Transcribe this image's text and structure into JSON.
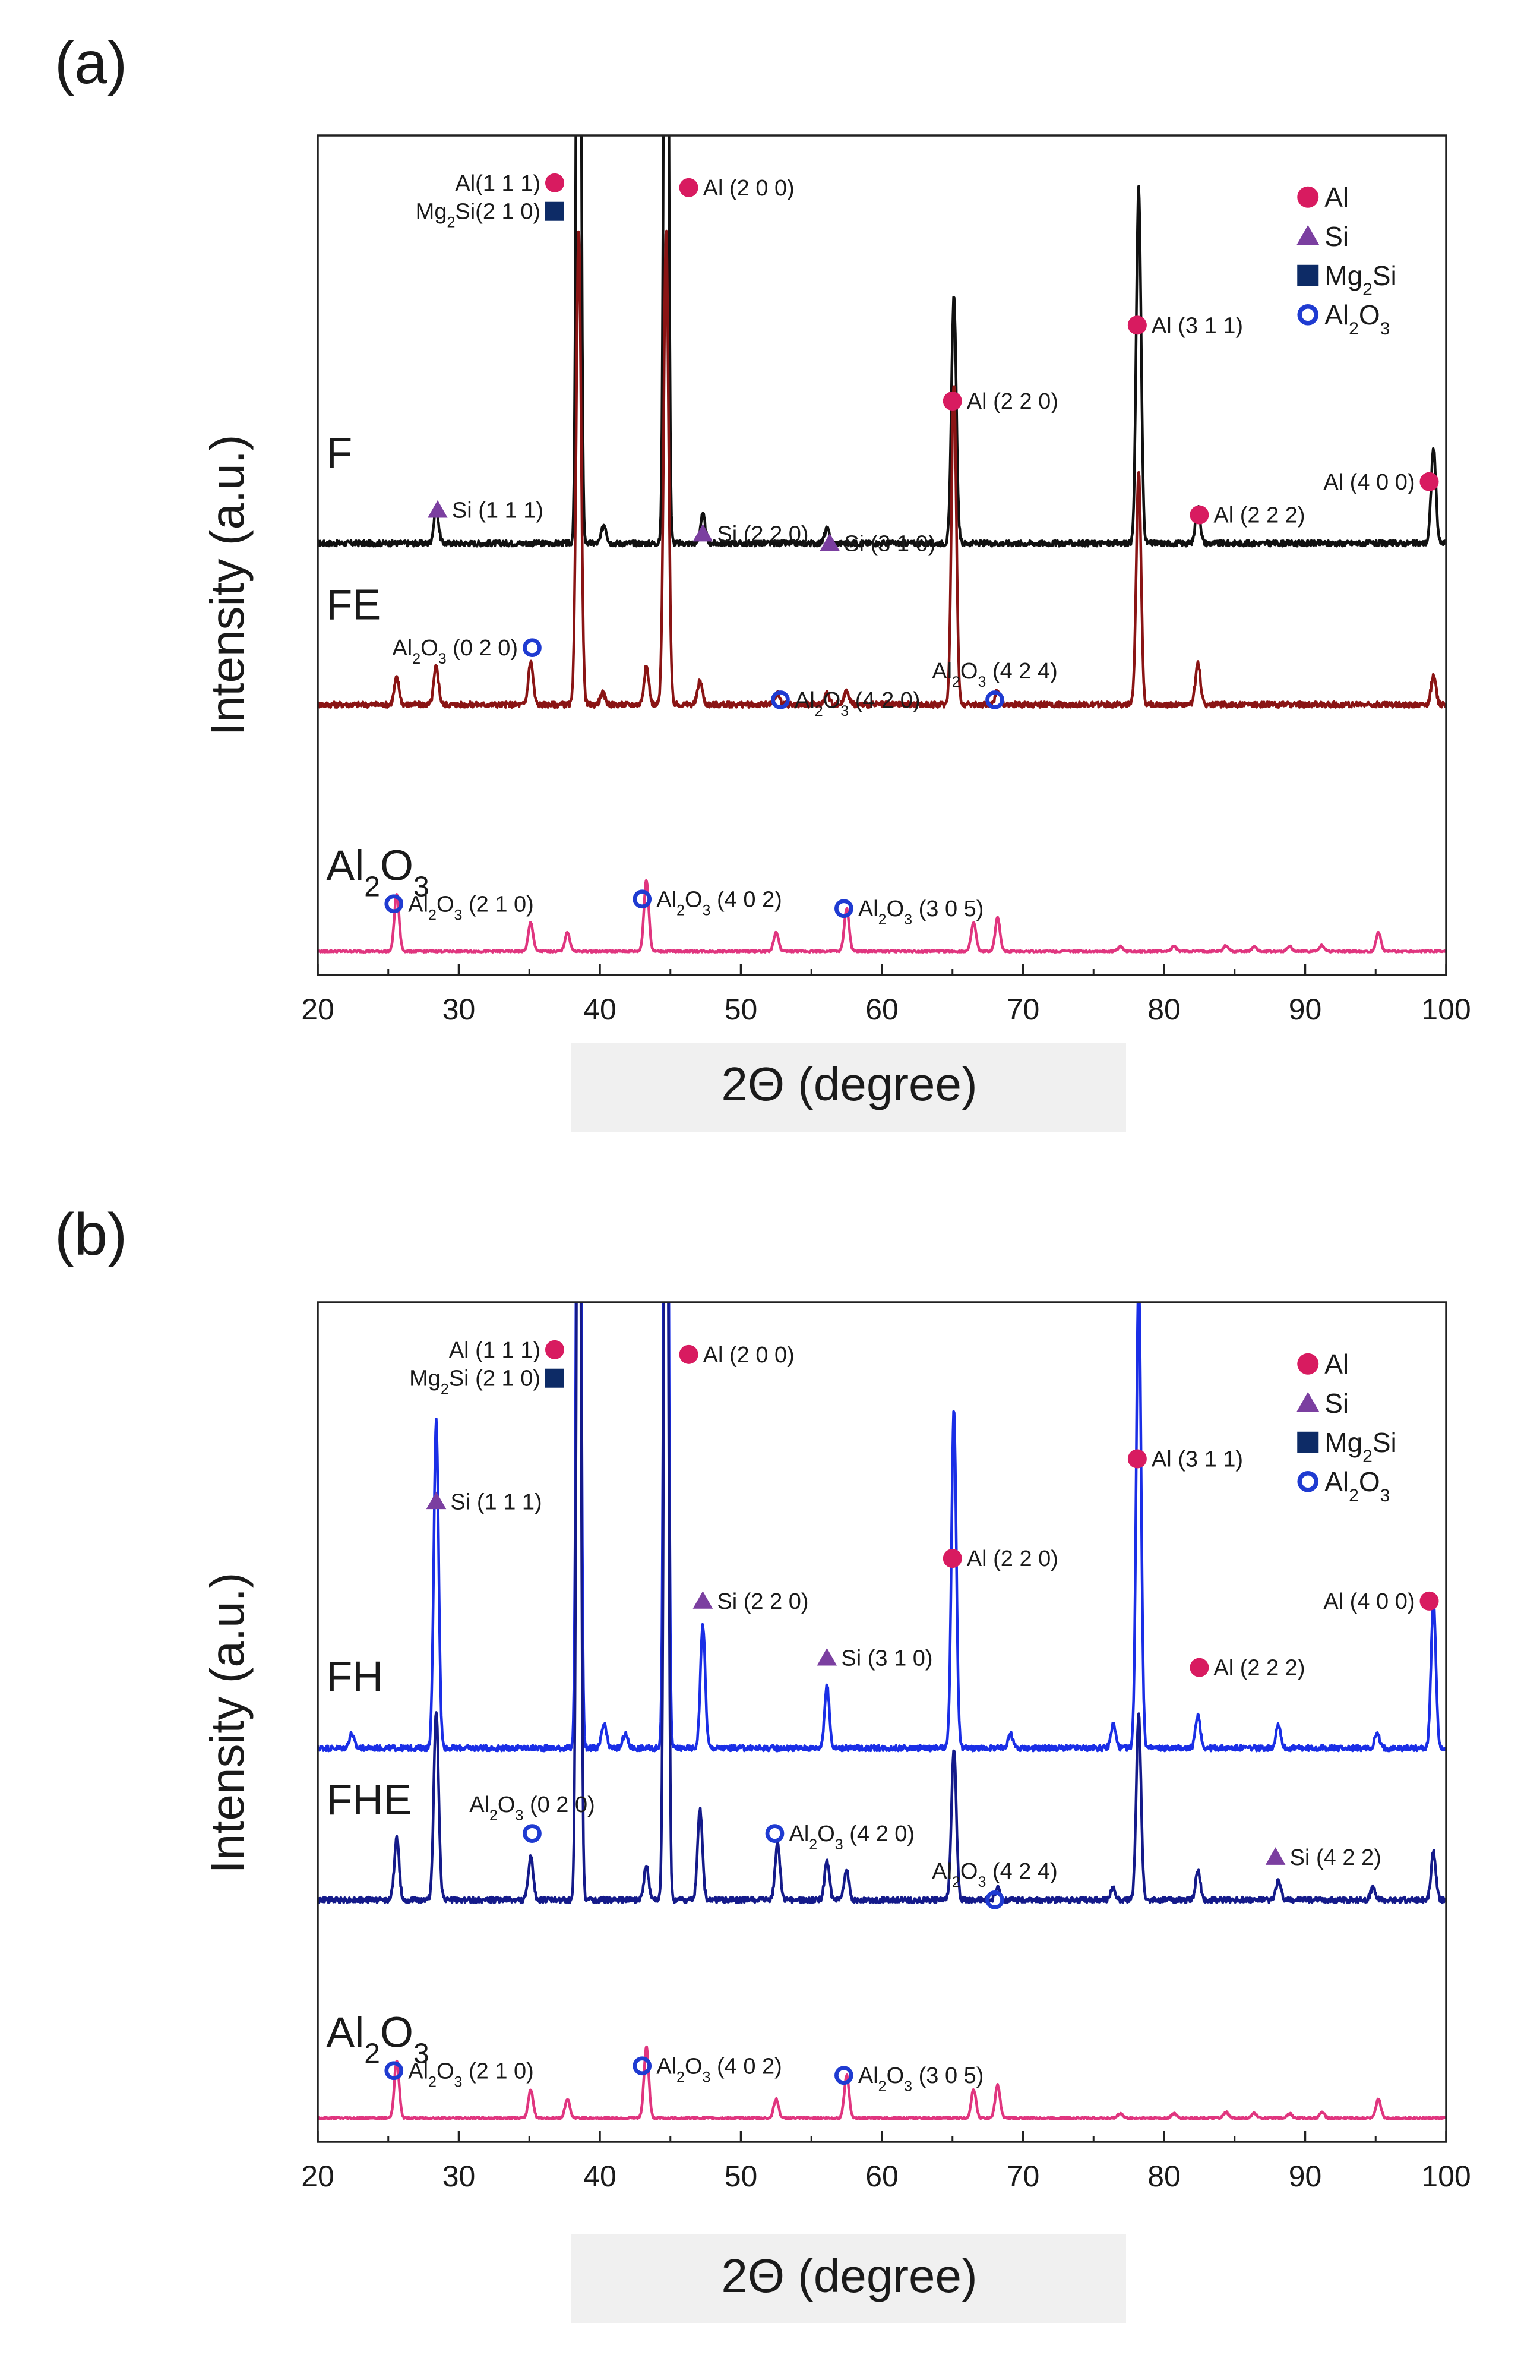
{
  "figure": {
    "xlabel_band_color": "#f0f0f0"
  },
  "chart_data": [
    {
      "type": "line",
      "panel_label": "(a)",
      "xlabel": "2Θ (degree)",
      "ylabel": "Intensity (a.u.)",
      "xlim": [
        20,
        100
      ],
      "xticks": [
        20,
        30,
        40,
        50,
        60,
        70,
        80,
        90,
        100
      ],
      "ylim": [
        -0.25,
        8.6
      ],
      "legend": {
        "position": "top-right",
        "items": [
          {
            "marker": "circle",
            "text": "Al"
          },
          {
            "marker": "triangle",
            "text": "Si"
          },
          {
            "marker": "square",
            "text": "Mg",
            "sub": "2",
            "after": "Si"
          },
          {
            "marker": "ring",
            "text": "Al",
            "sub": "2",
            "mid": "O",
            "sub2": "3"
          }
        ]
      },
      "series": [
        {
          "name": "F",
          "color": "#111111",
          "baseline": 4.3,
          "noise": 0.03,
          "peaks": [
            [
              28.4,
              0.35
            ],
            [
              38.5,
              12
            ],
            [
              40.3,
              0.2
            ],
            [
              44.7,
              12
            ],
            [
              47.3,
              0.3
            ],
            [
              56.1,
              0.15
            ],
            [
              65.1,
              2.6
            ],
            [
              78.2,
              3.75
            ],
            [
              82.4,
              0.38
            ],
            [
              99.1,
              1.0
            ]
          ]
        },
        {
          "name": "FE",
          "color": "#8a1414",
          "baseline": 2.6,
          "noise": 0.03,
          "peaks": [
            [
              25.6,
              0.28
            ],
            [
              28.4,
              0.4
            ],
            [
              35.1,
              0.45
            ],
            [
              38.5,
              5.0
            ],
            [
              40.2,
              0.12
            ],
            [
              43.3,
              0.4
            ],
            [
              44.7,
              5.0
            ],
            [
              47.1,
              0.25
            ],
            [
              52.6,
              0.12
            ],
            [
              56.1,
              0.12
            ],
            [
              57.5,
              0.15
            ],
            [
              65.1,
              3.4
            ],
            [
              68.2,
              0.15
            ],
            [
              78.2,
              2.45
            ],
            [
              82.4,
              0.45
            ],
            [
              99.1,
              0.3
            ]
          ]
        },
        {
          "name": "Al2O3",
          "color": "#e0357f",
          "baseline": 0.0,
          "noise": 0.01,
          "peaks": [
            [
              25.6,
              0.6
            ],
            [
              35.1,
              0.3
            ],
            [
              37.7,
              0.2
            ],
            [
              43.3,
              0.75
            ],
            [
              52.5,
              0.2
            ],
            [
              57.5,
              0.45
            ],
            [
              66.5,
              0.3
            ],
            [
              68.2,
              0.35
            ],
            [
              76.9,
              0.05
            ],
            [
              80.7,
              0.05
            ],
            [
              84.4,
              0.06
            ],
            [
              86.4,
              0.05
            ],
            [
              88.9,
              0.05
            ],
            [
              91.2,
              0.06
            ],
            [
              95.2,
              0.2
            ]
          ]
        }
      ],
      "series_labels": [
        {
          "text": "F",
          "at": [
            20.6,
            5.1
          ]
        },
        {
          "text": "FE",
          "at": [
            20.6,
            3.5
          ]
        },
        {
          "text": "Al",
          "sub": "2",
          "mid": "O",
          "sub2": "3",
          "at": [
            20.6,
            0.75
          ]
        }
      ],
      "annotations": [
        {
          "marker": "circle",
          "at": [
            36.8,
            8.1
          ],
          "side": "left",
          "text": "Al(1 1 1)"
        },
        {
          "marker": "square",
          "at": [
            36.8,
            7.8
          ],
          "side": "left",
          "text": "Mg",
          "sub": "2",
          "after": "Si(2 1 0)"
        },
        {
          "marker": "circle",
          "at": [
            46.3,
            8.05
          ],
          "side": "right",
          "text": "Al (2 0 0)"
        },
        {
          "marker": "circle",
          "at": [
            78.1,
            6.6
          ],
          "side": "right",
          "text": "Al (3 1 1)"
        },
        {
          "marker": "circle",
          "at": [
            65.0,
            5.8
          ],
          "side": "right",
          "text": "Al (2 2 0)"
        },
        {
          "marker": "circle",
          "at": [
            98.8,
            4.95
          ],
          "side": "left",
          "text": "Al (4 0 0)"
        },
        {
          "marker": "circle",
          "at": [
            82.5,
            4.6
          ],
          "side": "right",
          "text": "Al (2 2 2)"
        },
        {
          "marker": "triangle",
          "at": [
            28.5,
            4.65
          ],
          "side": "right",
          "text": "Si (1 1 1)"
        },
        {
          "marker": "triangle",
          "at": [
            47.3,
            4.4
          ],
          "side": "right",
          "text": "Si (2 2 0)"
        },
        {
          "marker": "triangle",
          "at": [
            56.3,
            4.3
          ],
          "side": "right",
          "text": "Si (3 1 0)"
        },
        {
          "marker": "ring",
          "at": [
            35.2,
            3.2
          ],
          "side": "left",
          "text": "Al",
          "sub": "2",
          "mid": "O",
          "sub2": "3",
          "after": "(0 2 0)"
        },
        {
          "marker": "ring",
          "at": [
            52.8,
            2.65
          ],
          "side": "right",
          "text": "Al",
          "sub": "2",
          "mid": "O",
          "sub2": "3",
          "after": "(4 2 0)"
        },
        {
          "marker": "ring",
          "at": [
            68.0,
            2.65
          ],
          "side": "above",
          "text": "Al",
          "sub": "2",
          "mid": "O",
          "sub2": "3",
          "after": "(4 2 4)"
        },
        {
          "marker": "ring",
          "at": [
            25.4,
            0.5
          ],
          "side": "right",
          "text": "Al",
          "sub": "2",
          "mid": "O",
          "sub2": "3",
          "after": "(2 1 0)"
        },
        {
          "marker": "ring",
          "at": [
            43.0,
            0.55
          ],
          "side": "right",
          "text": "Al",
          "sub": "2",
          "mid": "O",
          "sub2": "3",
          "after": "(4 0 2)"
        },
        {
          "marker": "ring",
          "at": [
            57.3,
            0.45
          ],
          "side": "right",
          "text": "Al",
          "sub": "2",
          "mid": "O",
          "sub2": "3",
          "after": "(3 0 5)"
        }
      ]
    },
    {
      "type": "line",
      "panel_label": "(b)",
      "xlabel": "2Θ (degree)",
      "ylabel": "Intensity (a.u.)",
      "xlim": [
        20,
        100
      ],
      "xticks": [
        20,
        30,
        40,
        50,
        60,
        70,
        80,
        90,
        100
      ],
      "ylim": [
        -0.25,
        8.6
      ],
      "legend": {
        "position": "top-right",
        "items": [
          {
            "marker": "circle",
            "text": "Al"
          },
          {
            "marker": "triangle",
            "text": "Si"
          },
          {
            "marker": "square",
            "text": "Mg",
            "sub": "2",
            "after": "Si"
          },
          {
            "marker": "ring",
            "text": "Al",
            "sub": "2",
            "mid": "O",
            "sub2": "3"
          }
        ]
      },
      "series": [
        {
          "name": "FH",
          "color": "#1a2ee6",
          "baseline": 3.9,
          "noise": 0.03,
          "peaks": [
            [
              22.4,
              0.15
            ],
            [
              28.4,
              3.45
            ],
            [
              38.5,
              12
            ],
            [
              40.3,
              0.25
            ],
            [
              41.8,
              0.15
            ],
            [
              44.7,
              12
            ],
            [
              47.3,
              1.3
            ],
            [
              56.1,
              0.65
            ],
            [
              65.1,
              3.55
            ],
            [
              69.1,
              0.15
            ],
            [
              76.4,
              0.25
            ],
            [
              78.2,
              5.0
            ],
            [
              82.4,
              0.35
            ],
            [
              88.1,
              0.25
            ],
            [
              95.1,
              0.15
            ],
            [
              99.1,
              1.55
            ]
          ]
        },
        {
          "name": "FHE",
          "color": "#141a8a",
          "baseline": 2.3,
          "noise": 0.03,
          "peaks": [
            [
              25.6,
              0.65
            ],
            [
              28.4,
              2.0
            ],
            [
              35.1,
              0.45
            ],
            [
              38.5,
              12
            ],
            [
              43.3,
              0.35
            ],
            [
              44.7,
              12
            ],
            [
              47.1,
              0.95
            ],
            [
              52.6,
              0.6
            ],
            [
              56.1,
              0.4
            ],
            [
              57.5,
              0.3
            ],
            [
              65.1,
              1.6
            ],
            [
              68.2,
              0.12
            ],
            [
              76.4,
              0.12
            ],
            [
              78.2,
              1.95
            ],
            [
              82.4,
              0.3
            ],
            [
              88.1,
              0.2
            ],
            [
              94.8,
              0.12
            ],
            [
              99.1,
              0.5
            ]
          ]
        },
        {
          "name": "Al2O3",
          "color": "#e0357f",
          "baseline": 0.0,
          "noise": 0.01,
          "peaks": [
            [
              25.6,
              0.6
            ],
            [
              35.1,
              0.3
            ],
            [
              37.7,
              0.2
            ],
            [
              43.3,
              0.75
            ],
            [
              52.5,
              0.2
            ],
            [
              57.5,
              0.45
            ],
            [
              66.5,
              0.3
            ],
            [
              68.2,
              0.35
            ],
            [
              76.9,
              0.05
            ],
            [
              80.7,
              0.05
            ],
            [
              84.4,
              0.06
            ],
            [
              86.4,
              0.05
            ],
            [
              88.9,
              0.05
            ],
            [
              91.2,
              0.06
            ],
            [
              95.2,
              0.2
            ]
          ]
        }
      ],
      "series_labels": [
        {
          "text": "FH",
          "at": [
            20.6,
            4.5
          ]
        },
        {
          "text": "FHE",
          "at": [
            20.6,
            3.2
          ]
        },
        {
          "text": "Al",
          "sub": "2",
          "mid": "O",
          "sub2": "3",
          "at": [
            20.6,
            0.75
          ]
        }
      ],
      "annotations": [
        {
          "marker": "circle",
          "at": [
            36.8,
            8.1
          ],
          "side": "left",
          "text": "Al (1 1 1)"
        },
        {
          "marker": "square",
          "at": [
            36.8,
            7.8
          ],
          "side": "left",
          "text": "Mg",
          "sub": "2",
          "after": "Si (2 1 0)"
        },
        {
          "marker": "circle",
          "at": [
            46.3,
            8.05
          ],
          "side": "right",
          "text": "Al (2 0 0)"
        },
        {
          "marker": "circle",
          "at": [
            78.1,
            6.95
          ],
          "side": "right",
          "text": "Al (3 1 1)"
        },
        {
          "marker": "triangle",
          "at": [
            28.4,
            6.5
          ],
          "side": "right",
          "text": "Si (1 1 1)"
        },
        {
          "marker": "circle",
          "at": [
            65.0,
            5.9
          ],
          "side": "right",
          "text": "Al (2 2 0)"
        },
        {
          "marker": "triangle",
          "at": [
            47.3,
            5.45
          ],
          "side": "right",
          "text": "Si (2 2 0)"
        },
        {
          "marker": "circle",
          "at": [
            98.8,
            5.45
          ],
          "side": "left",
          "text": "Al (4 0 0)"
        },
        {
          "marker": "triangle",
          "at": [
            56.1,
            4.85
          ],
          "side": "right",
          "text": "Si (3 1 0)"
        },
        {
          "marker": "circle",
          "at": [
            82.5,
            4.75
          ],
          "side": "right",
          "text": "Al (2 2 2)"
        },
        {
          "marker": "ring",
          "at": [
            35.2,
            3.0
          ],
          "side": "above",
          "text": "Al",
          "sub": "2",
          "mid": "O",
          "sub2": "3",
          "after": "(0 2 0)"
        },
        {
          "marker": "ring",
          "at": [
            52.4,
            3.0
          ],
          "side": "right",
          "text": "Al",
          "sub": "2",
          "mid": "O",
          "sub2": "3",
          "after": "(4 2 0)"
        },
        {
          "marker": "ring",
          "at": [
            68.0,
            2.3
          ],
          "side": "above",
          "text": "Al",
          "sub": "2",
          "mid": "O",
          "sub2": "3",
          "after": "(4 2 4)"
        },
        {
          "marker": "triangle",
          "at": [
            87.9,
            2.75
          ],
          "side": "right",
          "text": "Si (4 2 2)"
        },
        {
          "marker": "ring",
          "at": [
            25.4,
            0.5
          ],
          "side": "right",
          "text": "Al",
          "sub": "2",
          "mid": "O",
          "sub2": "3",
          "after": "(2 1 0)"
        },
        {
          "marker": "ring",
          "at": [
            43.0,
            0.55
          ],
          "side": "right",
          "text": "Al",
          "sub": "2",
          "mid": "O",
          "sub2": "3",
          "after": "(4 0 2)"
        },
        {
          "marker": "ring",
          "at": [
            57.3,
            0.45
          ],
          "side": "right",
          "text": "Al",
          "sub": "2",
          "mid": "O",
          "sub2": "3",
          "after": "(3 0 5)"
        }
      ]
    }
  ]
}
